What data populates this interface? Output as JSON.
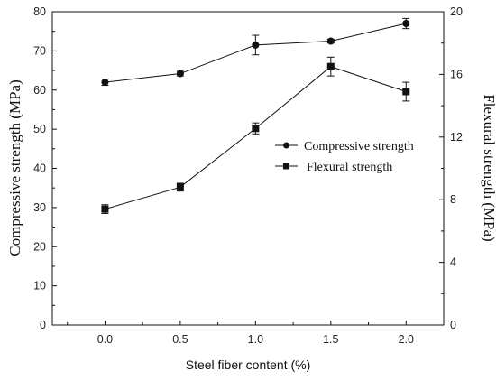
{
  "chart_data": {
    "type": "line",
    "x": [
      0.0,
      0.5,
      1.0,
      1.5,
      2.0
    ],
    "x_tick_labels": [
      "0.0",
      "0.5",
      "1.0",
      "1.5",
      "2.0"
    ],
    "xlabel": "Steel fiber content (%)",
    "xlim": [
      -0.35,
      2.25
    ],
    "left_axis": {
      "label": "Compressive strength (MPa)",
      "ylim": [
        0,
        80
      ],
      "ticks": [
        0,
        10,
        20,
        30,
        40,
        50,
        60,
        70,
        80
      ],
      "tick_labels": [
        "0",
        "10",
        "20",
        "30",
        "40",
        "50",
        "60",
        "70",
        "80"
      ]
    },
    "right_axis": {
      "label": "Flexural strength (MPa)",
      "ylim": [
        0,
        20
      ],
      "ticks": [
        0,
        4,
        8,
        12,
        16,
        20
      ],
      "tick_labels": [
        "0",
        "4",
        "8",
        "12",
        "16",
        "20"
      ]
    },
    "series": [
      {
        "name": "Compressive strength",
        "axis": "left",
        "marker": "circle",
        "values": [
          62.0,
          64.2,
          71.5,
          72.5,
          77.0
        ],
        "errors": [
          0.8,
          0.6,
          2.5,
          0.5,
          1.3
        ]
      },
      {
        "name": "Flexural strength",
        "axis": "right",
        "marker": "square",
        "values": [
          7.4,
          8.8,
          12.55,
          16.5,
          14.9
        ],
        "errors": [
          0.28,
          0.25,
          0.35,
          0.6,
          0.6
        ]
      }
    ],
    "legend_position": "center-right",
    "grid": false,
    "color": "#111111"
  }
}
